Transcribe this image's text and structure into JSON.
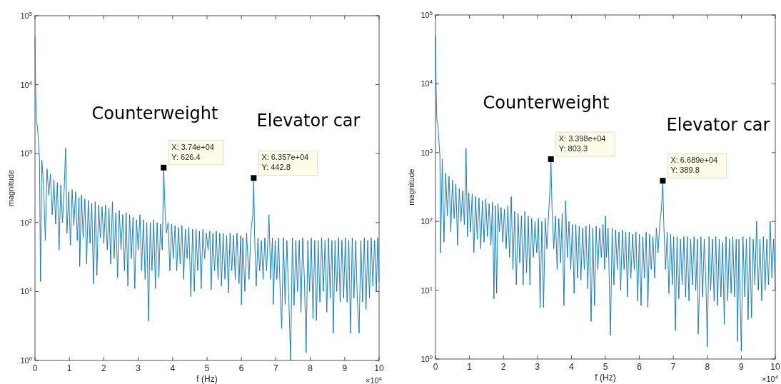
{
  "chart_data": [
    {
      "type": "line",
      "xlabel": "f (Hz)",
      "ylabel": "magnitude",
      "log": "y",
      "grid": false,
      "line_style": "solid",
      "marker": "none",
      "xlim": [
        0,
        10
      ],
      "xticks": [
        0,
        1,
        2,
        3,
        4,
        5,
        6,
        7,
        8,
        9,
        10
      ],
      "ylim": [
        1,
        100000
      ],
      "yticks": [
        {
          "value": 1,
          "label": "10$^{0}$"
        },
        {
          "value": 10,
          "label": "10$^{1}$"
        },
        {
          "value": 100,
          "label": "10$^{2}$"
        },
        {
          "value": 1000,
          "label": "10$^{3}$"
        },
        {
          "value": 10000,
          "label": "10$^{4}$"
        },
        {
          "value": 100000,
          "label": "10$^{5}$"
        }
      ],
      "annotations": [
        "Counterweight",
        "Elevator car",
        {
          "text": "X: 3.74e+04\nY: 626.4",
          "x": 3.74,
          "y": 626.4
        },
        {
          "text": "X: 6.357e+04\nY: 442.8",
          "x": 6.357,
          "y": 442.8
        },
        "×10$^{4}$"
      ],
      "series": [
        {
          "color": "#0072bd",
          "x": [
            0,
            0.02,
            0.04,
            0.07,
            0.1,
            0.13,
            0.16,
            0.2,
            0.25,
            0.3,
            0.35,
            0.4,
            0.45,
            0.5,
            0.55,
            0.6,
            0.65,
            0.7,
            0.75,
            0.8,
            0.85,
            0.89,
            0.93,
            0.98,
            1.03,
            1.08,
            1.13,
            1.18,
            1.23,
            1.28,
            1.3,
            1.35,
            1.4,
            1.45,
            1.5,
            1.55,
            1.6,
            1.65,
            1.7,
            1.75,
            1.8,
            1.85,
            1.9,
            1.95,
            2,
            2.05,
            2.1,
            2.15,
            2.2,
            2.25,
            2.3,
            2.35,
            2.4,
            2.45,
            2.5,
            2.55,
            2.6,
            2.65,
            2.7,
            2.75,
            2.8,
            2.85,
            2.9,
            2.95,
            3,
            3.05,
            3.1,
            3.15,
            3.2,
            3.25,
            3.3,
            3.35,
            3.4,
            3.45,
            3.5,
            3.55,
            3.6,
            3.65,
            3.7,
            3.74,
            3.78,
            3.82,
            3.87,
            3.92,
            3.97,
            4.02,
            4.07,
            4.12,
            4.17,
            4.22,
            4.27,
            4.32,
            4.37,
            4.42,
            4.47,
            4.53,
            4.58,
            4.63,
            4.68,
            4.73,
            4.78,
            4.83,
            4.88,
            4.93,
            4.98,
            5.03,
            5.08,
            5.12,
            5.17,
            5.22,
            5.27,
            5.32,
            5.37,
            5.42,
            5.47,
            5.52,
            5.57,
            5.62,
            5.67,
            5.72,
            5.77,
            5.82,
            5.87,
            5.93,
            5.98,
            6,
            6.04,
            6.1,
            6.15,
            6.22,
            6.28,
            6.33,
            6.357,
            6.38,
            6.43,
            6.48,
            6.53,
            6.58,
            6.63,
            6.68,
            6.73,
            6.8,
            6.85,
            6.9,
            6.93,
            6.98,
            7.03,
            7.08,
            7.13,
            7.17,
            7.22,
            7.27,
            7.32,
            7.37,
            7.43,
            7.48,
            7.53,
            7.58,
            7.63,
            7.68,
            7.73,
            7.78,
            7.83,
            7.88,
            7.93,
            7.98,
            8.03,
            8.08,
            8.13,
            8.18,
            8.23,
            8.28,
            8.33,
            8.38,
            8.43,
            8.48,
            8.53,
            8.58,
            8.63,
            8.67,
            8.72,
            8.77,
            8.82,
            8.87,
            8.92,
            8.97,
            9.02,
            9.07,
            9.12,
            9.17,
            9.22,
            9.27,
            9.32,
            9.37,
            9.42,
            9.47,
            9.52,
            9.57,
            9.62,
            9.67,
            9.72,
            9.77,
            9.82,
            9.87,
            9.92,
            9.96,
            10
          ],
          "values": [
            50000,
            8000,
            3000,
            2500,
            1500,
            900,
            14,
            800,
            350,
            55,
            600,
            250,
            500,
            130,
            420,
            95,
            380,
            40,
            350,
            100,
            320,
            1200,
            70,
            280,
            47,
            300,
            90,
            280,
            55,
            230,
            23,
            250,
            60,
            220,
            25,
            210,
            50,
            190,
            13,
            200,
            17,
            180,
            60,
            170,
            50,
            180,
            40,
            160,
            25,
            200,
            30,
            140,
            16,
            150,
            40,
            130,
            20,
            140,
            12,
            130,
            30,
            120,
            11,
            110,
            40,
            130,
            20,
            110,
            15,
            100,
            3.7,
            100,
            20,
            110,
            11,
            100,
            16,
            95,
            40,
            626.4,
            150,
            70,
            100,
            20,
            95,
            30,
            90,
            20,
            85,
            25,
            90,
            15,
            80,
            30,
            85,
            8.4,
            80,
            10,
            80,
            20,
            75,
            11,
            80,
            30,
            70,
            40,
            75,
            10.5,
            70,
            20,
            75,
            15,
            70,
            12,
            70,
            15,
            65,
            9.5,
            70,
            20,
            65,
            15,
            70,
            13,
            65,
            6.4,
            60,
            10,
            70,
            15,
            80,
            130,
            442.8,
            70,
            12,
            60,
            20,
            55,
            15,
            60,
            20,
            130,
            15,
            60,
            6.5,
            55,
            15,
            60,
            8.5,
            2.9,
            60,
            6.5,
            55,
            10,
            1,
            60,
            6.3,
            55,
            10,
            55,
            5,
            60,
            15,
            1.3,
            55,
            10,
            60,
            4,
            55,
            3.8,
            55,
            7,
            60,
            10,
            55,
            5,
            60,
            8,
            55,
            2.5,
            55,
            10,
            60,
            7,
            55,
            8,
            60,
            7,
            55,
            2.5,
            60,
            8,
            55,
            7,
            2.5,
            55,
            7,
            60,
            5.5,
            55,
            8,
            60,
            12,
            55,
            10,
            60,
            14
          ]
        }
      ]
    },
    {
      "type": "line",
      "xlabel": "f (Hz)",
      "ylabel": "magnitude",
      "log": "y",
      "grid": false,
      "line_style": "solid",
      "marker": "none",
      "xlim": [
        0,
        10
      ],
      "xticks": [
        0,
        1,
        2,
        3,
        4,
        5,
        6,
        7,
        8,
        9,
        10
      ],
      "ylim": [
        1,
        100000
      ],
      "yticks": [
        {
          "value": 1,
          "label": "10$^{0}$"
        },
        {
          "value": 10,
          "label": "10$^{1}$"
        },
        {
          "value": 100,
          "label": "10$^{2}$"
        },
        {
          "value": 1000,
          "label": "10$^{3}$"
        },
        {
          "value": 10000,
          "label": "10$^{4}$"
        },
        {
          "value": 100000,
          "label": "10$^{5}$"
        }
      ],
      "annotations": [
        "Counterweight",
        "Elevator car",
        {
          "text": "X: 3.398e+04\nY: 803.3",
          "x": 3.398,
          "y": 803.3
        },
        {
          "text": "X: 6.689e+04\nY: 389.8",
          "x": 6.689,
          "y": 389.8
        },
        "×10$^{4}$"
      ],
      "series": [
        {
          "color": "#0072bd",
          "x": [
            0,
            0.02,
            0.04,
            0.07,
            0.1,
            0.13,
            0.15,
            0.2,
            0.25,
            0.3,
            0.35,
            0.4,
            0.45,
            0.5,
            0.55,
            0.6,
            0.65,
            0.7,
            0.75,
            0.8,
            0.85,
            0.9,
            0.94,
            0.98,
            1.03,
            1.08,
            1.13,
            1.18,
            1.23,
            1.28,
            1.33,
            1.38,
            1.43,
            1.48,
            1.53,
            1.58,
            1.63,
            1.68,
            1.72,
            1.76,
            1.8,
            1.84,
            1.88,
            1.93,
            1.98,
            2.03,
            2.08,
            2.13,
            2.18,
            2.23,
            2.28,
            2.33,
            2.38,
            2.43,
            2.48,
            2.53,
            2.58,
            2.63,
            2.68,
            2.73,
            2.78,
            2.83,
            2.88,
            2.93,
            2.98,
            3.03,
            3.08,
            3.13,
            3.18,
            3.23,
            3.28,
            3.33,
            3.37,
            3.398,
            3.43,
            3.48,
            3.53,
            3.58,
            3.63,
            3.68,
            3.73,
            3.78,
            3.83,
            3.88,
            3.93,
            3.98,
            4.03,
            4.08,
            4.13,
            4.18,
            4.23,
            4.28,
            4.33,
            4.38,
            4.43,
            4.48,
            4.53,
            4.58,
            4.63,
            4.68,
            4.73,
            4.78,
            4.83,
            4.88,
            4.93,
            4.98,
            5,
            5.03,
            5.08,
            5.15,
            5.2,
            5.25,
            5.3,
            5.35,
            5.4,
            5.45,
            5.5,
            5.55,
            5.6,
            5.65,
            5.7,
            5.75,
            5.8,
            5.85,
            5.9,
            5.95,
            6,
            6.05,
            6.1,
            6.15,
            6.2,
            6.25,
            6.3,
            6.35,
            6.4,
            6.45,
            6.5,
            6.55,
            6.6,
            6.65,
            6.689,
            6.72,
            6.77,
            6.82,
            6.87,
            6.92,
            6.97,
            7.01,
            7.06,
            7.11,
            7.16,
            7.21,
            7.26,
            7.31,
            7.36,
            7.41,
            7.46,
            7.51,
            7.56,
            7.61,
            7.66,
            7.71,
            7.73,
            7.81,
            7.86,
            7.91,
            7.96,
            8,
            8.05,
            8.1,
            8.15,
            8.2,
            8.25,
            8.3,
            8.35,
            8.4,
            8.45,
            8.5,
            8.55,
            8.6,
            8.65,
            8.7,
            8.75,
            8.8,
            8.85,
            8.89,
            8.93,
            9,
            9.05,
            9.1,
            9.15,
            9.2,
            9.25,
            9.3,
            9.35,
            9.4,
            9.45,
            9.5,
            9.55,
            9.6,
            9.65,
            9.7,
            9.75,
            9.8,
            9.85,
            9.9,
            9.95,
            10
          ],
          "values": [
            50000,
            8000,
            3000,
            2500,
            1500,
            900,
            35,
            800,
            50,
            500,
            120,
            450,
            70,
            400,
            110,
            350,
            45,
            300,
            100,
            280,
            90,
            1150,
            60,
            260,
            70,
            250,
            35,
            230,
            55,
            220,
            40,
            200,
            50,
            210,
            60,
            180,
            45,
            190,
            7.5,
            170,
            9,
            180,
            70,
            160,
            50,
            150,
            40,
            170,
            30,
            230,
            20,
            140,
            12,
            130,
            25,
            120,
            12,
            140,
            18,
            120,
            12,
            110,
            30,
            100,
            35,
            110,
            5.5,
            100,
            5.6,
            110,
            40,
            130,
            300,
            803.3,
            150,
            40,
            120,
            20,
            110,
            25,
            130,
            6,
            200,
            30,
            100,
            20,
            90,
            9,
            90,
            15,
            85,
            14,
            80,
            20,
            85,
            10.5,
            90,
            3.5,
            80,
            6,
            85,
            20,
            80,
            30,
            90,
            20,
            120,
            30,
            80,
            2.2,
            80,
            12,
            75,
            20,
            70,
            10,
            75,
            20,
            70,
            8,
            70,
            15,
            65,
            20,
            70,
            7,
            65,
            6,
            60,
            15,
            70,
            5.6,
            65,
            20,
            60,
            15,
            80,
            35,
            90,
            150,
            389.8,
            90,
            20,
            70,
            9,
            65,
            12,
            60,
            2.6,
            60,
            7.5,
            55,
            12,
            60,
            8,
            60,
            7,
            55,
            12,
            60,
            10,
            55,
            2.3,
            60,
            8,
            55,
            12,
            1.5,
            60,
            10,
            55,
            7,
            60,
            6,
            55,
            8,
            50,
            3.2,
            60,
            7,
            55,
            9,
            60,
            8,
            55,
            1.8,
            55,
            1.3,
            60,
            8,
            55,
            3.7,
            60,
            4,
            55,
            12,
            100,
            10,
            55,
            7,
            60,
            10,
            55,
            12,
            100,
            15,
            55,
            10
          ]
        }
      ]
    }
  ]
}
